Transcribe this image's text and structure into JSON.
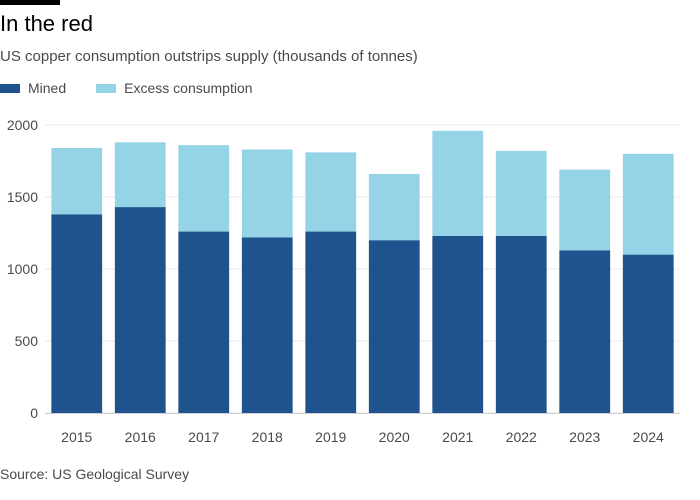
{
  "header": {
    "title": "In the red",
    "subtitle": "US copper consumption outstrips supply (thousands of tonnes)"
  },
  "legend": {
    "mined_label": "Mined",
    "excess_label": "Excess consumption"
  },
  "colors": {
    "mined": "#1f538d",
    "excess": "#95d3e6",
    "gridline": "#e8e8e8",
    "axis_text": "#4a4a4a"
  },
  "source": "Source: US Geological Survey",
  "chart_data": {
    "type": "bar",
    "stacked": true,
    "title": "In the red",
    "subtitle": "US copper consumption outstrips supply (thousands of tonnes)",
    "categories": [
      "2015",
      "2016",
      "2017",
      "2018",
      "2019",
      "2020",
      "2021",
      "2022",
      "2023",
      "2024"
    ],
    "series": [
      {
        "name": "Mined",
        "values": [
          1380,
          1430,
          1260,
          1220,
          1260,
          1200,
          1230,
          1230,
          1130,
          1100
        ]
      },
      {
        "name": "Excess consumption",
        "values": [
          460,
          450,
          600,
          610,
          550,
          460,
          730,
          590,
          560,
          700
        ]
      }
    ],
    "yticks": [
      0,
      500,
      1000,
      1500,
      2000
    ],
    "ylim": [
      0,
      2000
    ],
    "xlabel": "",
    "ylabel": "",
    "grid": true,
    "legend_position": "top-left"
  }
}
